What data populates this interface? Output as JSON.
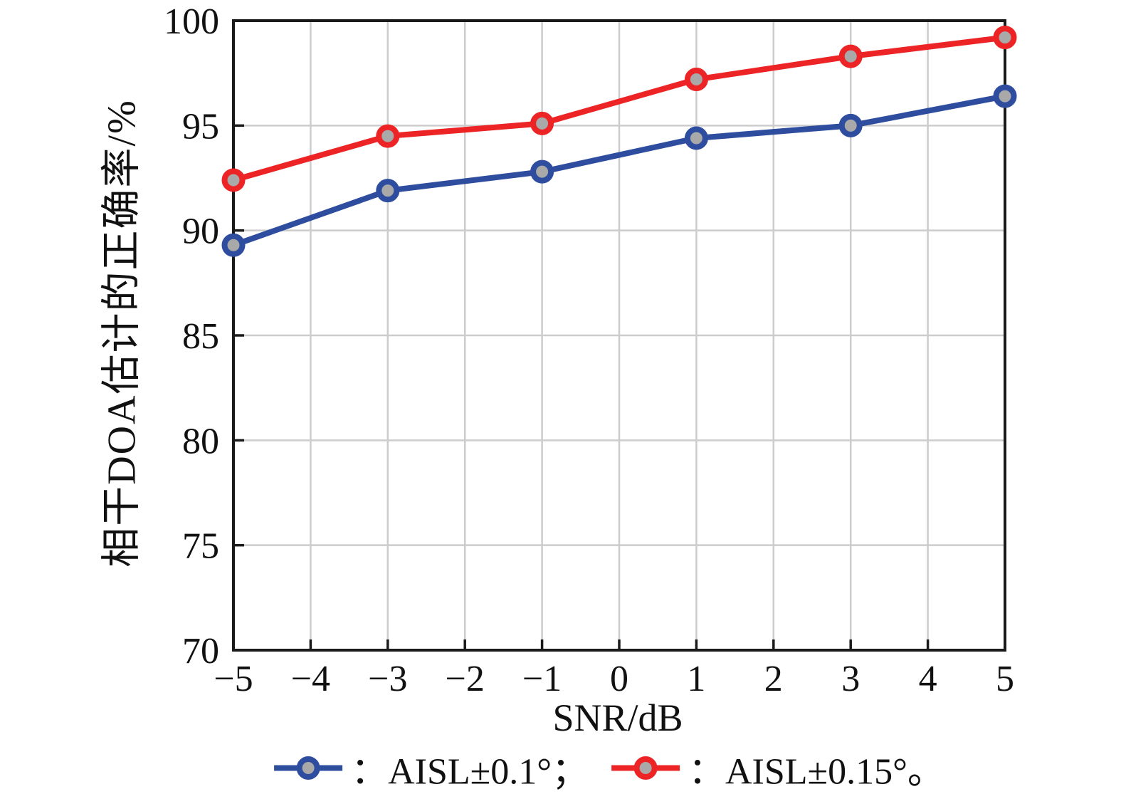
{
  "chart_data": {
    "type": "line",
    "title": "",
    "xlabel": "SNR/dB",
    "ylabel": "相干DOA估计的正确率/%",
    "x": [
      -5,
      -3,
      -1,
      1,
      3,
      5
    ],
    "series": [
      {
        "name": "AISL±0.1°",
        "color": "#2e4d9e",
        "values": [
          89.3,
          91.9,
          92.8,
          94.4,
          95.0,
          96.4
        ]
      },
      {
        "name": "AISL±0.15°",
        "color": "#ec2426",
        "values": [
          92.4,
          94.5,
          95.1,
          97.2,
          98.3,
          99.2
        ]
      }
    ],
    "xlim": [
      -5,
      5
    ],
    "ylim": [
      70,
      100
    ],
    "x_ticks": [
      -5,
      -4,
      -3,
      -2,
      -1,
      0,
      1,
      2,
      3,
      4,
      5
    ],
    "x_tick_labels": [
      "−5",
      "−4",
      "−3",
      "−2",
      "−1",
      "0",
      "1",
      "2",
      "3",
      "4",
      "5"
    ],
    "y_ticks": [
      70,
      75,
      80,
      85,
      90,
      95,
      100
    ],
    "y_tick_labels": [
      "70",
      "75",
      "80",
      "85",
      "90",
      "95",
      "100"
    ],
    "grid": true,
    "legend_position": "bottom",
    "marker": "circle",
    "marker_fill": "#a9a9a9",
    "grid_color": "#cccccc",
    "axis_color": "#1a1a1a",
    "tick_label_color": "#111111"
  },
  "legend": {
    "items": [
      {
        "series": "AISL±0.1°",
        "text": "：AISL±0.1°；",
        "color": "#2e4d9e"
      },
      {
        "series": "AISL±0.15°",
        "text": "：AISL±0.15°。",
        "color": "#ec2426"
      }
    ]
  }
}
